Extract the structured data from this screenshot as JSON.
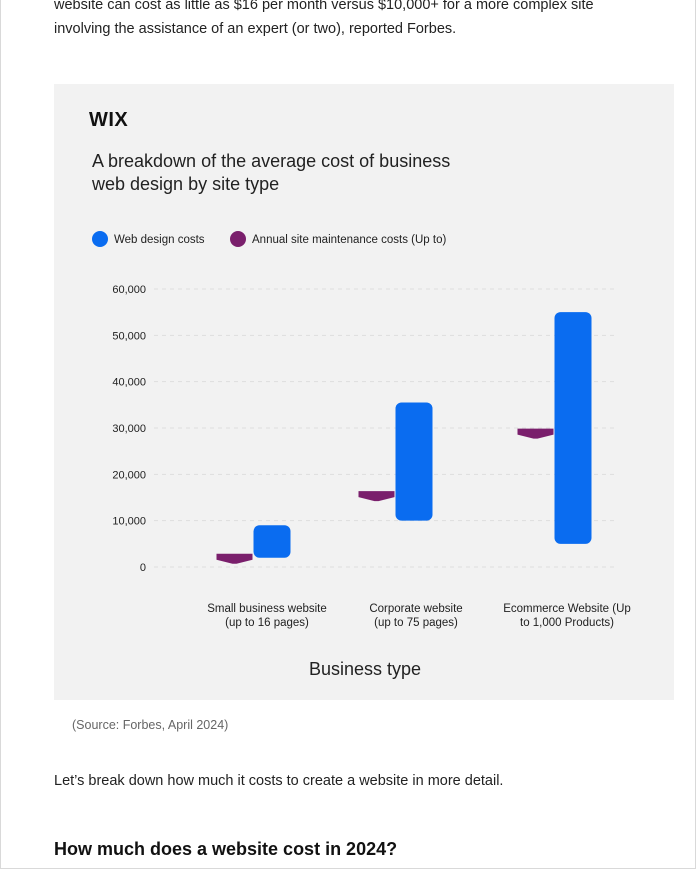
{
  "article": {
    "intro_text": "website can cost as little as $16 per month versus $10,000+ for a more complex site involving the assistance of an expert (or two), reported Forbes.",
    "source_note": "(Source: Forbes, April 2024)",
    "paragraph": "Let’s break down how much it costs to create a website in more detail.",
    "heading": "How much does a website cost in 2024?"
  },
  "figure": {
    "logo_text": "WIX"
  },
  "colors": {
    "design": "#0a6cf0",
    "maintenance": "#7a1f6c",
    "background": "#f2f2f2",
    "grid": "#dddddd"
  },
  "chart_data": {
    "type": "floating-bar",
    "title": "A breakdown of the average cost of business web design by site type",
    "title_lines": [
      "A breakdown of the average cost of business",
      "web design by site type"
    ],
    "xlabel": "Business type",
    "ylabel": "",
    "ylim": [
      0,
      60000
    ],
    "yticks": [
      0,
      10000,
      20000,
      30000,
      40000,
      50000,
      60000
    ],
    "ytick_labels": [
      "0",
      "10,000",
      "20,000",
      "30,000",
      "40,000",
      "50,000",
      "60,000"
    ],
    "legend_position": "top-left",
    "categories": [
      [
        "Small business website",
        "(up to 16 pages)"
      ],
      [
        "Corporate website",
        "(up to 75 pages)"
      ],
      [
        "Ecommerce Website (Up",
        "to 1,000 Products)"
      ]
    ],
    "series": [
      {
        "name": "Web design costs",
        "kind": "range",
        "values": [
          [
            2000,
            9000
          ],
          [
            10000,
            35500
          ],
          [
            5000,
            55000
          ]
        ]
      },
      {
        "name": "Annual site maintenance costs (Up to)",
        "kind": "marker",
        "values": [
          2000,
          15500,
          29000
        ]
      }
    ]
  }
}
